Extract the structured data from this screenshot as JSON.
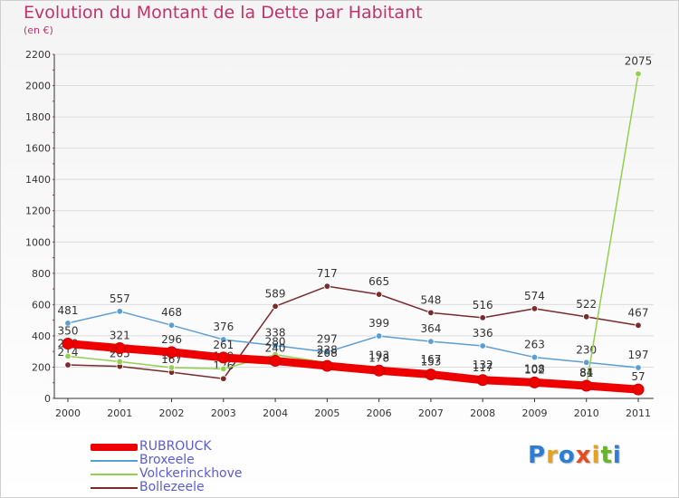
{
  "header": {
    "title": "Evolution du Montant de la Dette par Habitant",
    "subtitle": "(en €)"
  },
  "logo": {
    "text": "Proxiti",
    "colors": [
      "#2b7fd3",
      "#e8a219",
      "#2b7fd3",
      "#e84c1e",
      "#e8a219",
      "#66b32e",
      "#2b7fd3"
    ]
  },
  "colors": {
    "title": "#c2326a",
    "legend_text": "#5b5bd6",
    "grid": "#dcdcdc",
    "axis": "#333333"
  },
  "chart_data": {
    "type": "line",
    "x": [
      "2000",
      "2001",
      "2002",
      "2003",
      "2004",
      "2005",
      "2006",
      "2007",
      "2008",
      "2009",
      "2010",
      "2011"
    ],
    "ylim": [
      0,
      2200
    ],
    "yticks": [
      0,
      200,
      400,
      600,
      800,
      1000,
      1200,
      1400,
      1600,
      1800,
      2000,
      2200
    ],
    "grid": true,
    "legend_position": "bottom-left",
    "series": [
      {
        "name": "Bollezeele",
        "color": "#7a2a2a",
        "values": [
          214,
          205,
          167,
          126,
          589,
          717,
          665,
          548,
          516,
          574,
          522,
          467
        ]
      },
      {
        "name": "Broxeele",
        "color": "#5a9fd4",
        "values": [
          481,
          557,
          468,
          376,
          338,
          297,
          399,
          364,
          336,
          263,
          230,
          197
        ]
      },
      {
        "name": "Volckerinckhove",
        "color": "#92d050",
        "values": [
          270,
          235,
          197,
          189,
          280,
          228,
          193,
          167,
          132,
          108,
          84,
          2075
        ]
      },
      {
        "name": "RUBROUCK",
        "color": "#ee0000",
        "values": [
          350,
          321,
          296,
          261,
          240,
          208,
          178,
          153,
          117,
          102,
          81,
          57
        ]
      }
    ],
    "legend": [
      "RUBROUCK",
      "Broxeele",
      "Volckerinckhove",
      "Bollezeele"
    ]
  }
}
